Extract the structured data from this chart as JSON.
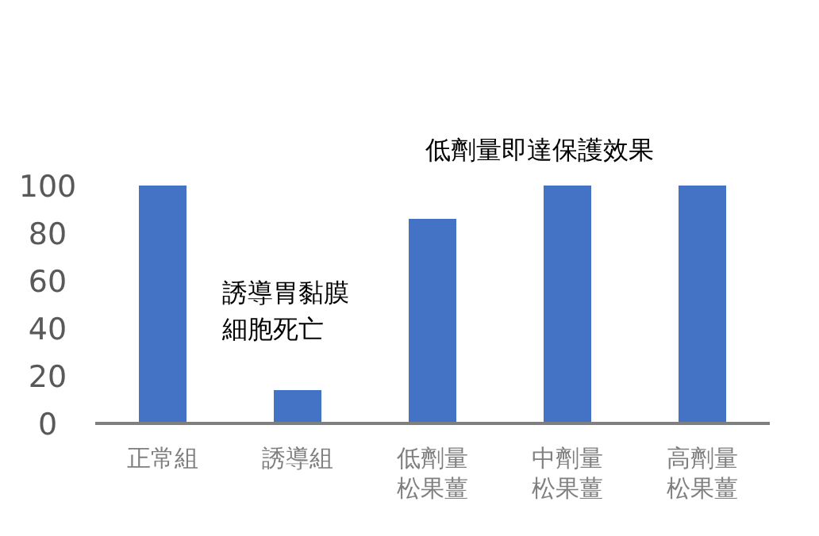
{
  "chart_data": {
    "type": "bar",
    "categories": [
      "正常組",
      "誘導組",
      "低劑量松果薑",
      "中劑量松果薑",
      "高劑量松果薑"
    ],
    "values": [
      100,
      14,
      86,
      100,
      100
    ],
    "color": "#4472c4",
    "ylim": [
      0,
      100
    ],
    "yticks": [
      0,
      20,
      40,
      60,
      80,
      100
    ],
    "grid": false,
    "annotations": [
      "低劑量即達保護效果",
      "誘導胃黏膜細胞死亡"
    ]
  }
}
